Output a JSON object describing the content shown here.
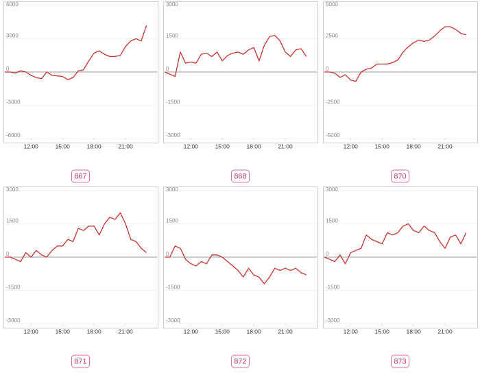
{
  "chart_data": [
    {
      "type": "line",
      "title": "867",
      "color": "#c8312c",
      "x": [
        9.5,
        10,
        10.5,
        11,
        11.5,
        12,
        12.5,
        13,
        13.5,
        14,
        14.5,
        15,
        15.5,
        16,
        16.5,
        17,
        17.5,
        18,
        18.5,
        19,
        19.5,
        20,
        20.5,
        21,
        21.5,
        22,
        22.5,
        23
      ],
      "values": [
        0,
        0,
        -100,
        100,
        0,
        -300,
        -500,
        -600,
        0,
        -300,
        -350,
        -400,
        -700,
        -500,
        100,
        200,
        1000,
        1700,
        1900,
        1600,
        1400,
        1400,
        1500,
        2300,
        2800,
        3000,
        2800,
        4200
      ],
      "xlim": [
        9.5,
        24
      ],
      "xticks": [
        {
          "value": 12,
          "label": "12:00"
        },
        {
          "value": 15,
          "label": "15:00"
        },
        {
          "value": 18,
          "label": "18:00"
        },
        {
          "value": 21,
          "label": "21:00"
        }
      ],
      "ylim": [
        -6000,
        6000
      ],
      "yticks": [
        -6000,
        -3000,
        0,
        3000,
        6000
      ],
      "grid": true
    },
    {
      "type": "line",
      "title": "868",
      "color": "#c8312c",
      "x": [
        9.5,
        10,
        10.5,
        11,
        11.5,
        12,
        12.5,
        13,
        13.5,
        14,
        14.5,
        15,
        15.5,
        16,
        16.5,
        17,
        17.5,
        18,
        18.5,
        19,
        19.5,
        20,
        20.5,
        21,
        21.5,
        22,
        22.5,
        23
      ],
      "values": [
        0,
        -100,
        -200,
        900,
        400,
        450,
        400,
        800,
        850,
        700,
        900,
        500,
        750,
        850,
        900,
        800,
        1000,
        1100,
        500,
        1200,
        1600,
        1650,
        1400,
        900,
        700,
        1000,
        1050,
        700
      ],
      "xlim": [
        9.5,
        24
      ],
      "xticks": [
        {
          "value": 12,
          "label": "12:00"
        },
        {
          "value": 15,
          "label": "15:00"
        },
        {
          "value": 18,
          "label": "18:00"
        },
        {
          "value": 21,
          "label": "21:00"
        }
      ],
      "ylim": [
        -3000,
        3000
      ],
      "yticks": [
        -3000,
        -1500,
        0,
        1500,
        3000
      ],
      "grid": true
    },
    {
      "type": "line",
      "title": "870",
      "color": "#c8312c",
      "x": [
        9.5,
        10,
        10.5,
        11,
        11.5,
        12,
        12.5,
        13,
        13.5,
        14,
        14.5,
        15,
        15.5,
        16,
        16.5,
        17,
        17.5,
        18,
        18.5,
        19,
        19.5,
        20,
        20.5,
        21,
        21.5,
        22,
        22.5,
        23
      ],
      "values": [
        0,
        0,
        -100,
        -400,
        -200,
        -600,
        -700,
        0,
        200,
        300,
        600,
        600,
        600,
        700,
        900,
        1500,
        1900,
        2200,
        2400,
        2300,
        2400,
        2700,
        3100,
        3400,
        3400,
        3200,
        2900,
        2800
      ],
      "xlim": [
        9.5,
        24
      ],
      "xticks": [
        {
          "value": 12,
          "label": "12:00"
        },
        {
          "value": 15,
          "label": "15:00"
        },
        {
          "value": 18,
          "label": "18:00"
        },
        {
          "value": 21,
          "label": "21:00"
        }
      ],
      "ylim": [
        -5000,
        5000
      ],
      "yticks": [
        -5000,
        -2500,
        0,
        2500,
        5000
      ],
      "grid": true
    },
    {
      "type": "line",
      "title": "871",
      "color": "#c8312c",
      "x": [
        9.5,
        10,
        10.5,
        11,
        11.5,
        12,
        12.5,
        13,
        13.5,
        14,
        14.5,
        15,
        15.5,
        16,
        16.5,
        17,
        17.5,
        18,
        18.5,
        19,
        19.5,
        20,
        20.5,
        21,
        21.5,
        22,
        22.5,
        23
      ],
      "values": [
        0,
        0,
        -100,
        -200,
        200,
        0,
        300,
        100,
        0,
        300,
        500,
        500,
        800,
        700,
        1300,
        1200,
        1400,
        1400,
        1000,
        1500,
        1800,
        1700,
        2000,
        1500,
        800,
        700,
        400,
        200
      ],
      "xlim": [
        9.5,
        24
      ],
      "xticks": [
        {
          "value": 12,
          "label": "12:00"
        },
        {
          "value": 15,
          "label": "15:00"
        },
        {
          "value": 18,
          "label": "18:00"
        },
        {
          "value": 21,
          "label": "21:00"
        }
      ],
      "ylim": [
        -3000,
        3000
      ],
      "yticks": [
        -3000,
        -1500,
        0,
        1500,
        3000
      ],
      "grid": true
    },
    {
      "type": "line",
      "title": "872",
      "color": "#c8312c",
      "x": [
        9.5,
        10,
        10.5,
        11,
        11.5,
        12,
        12.5,
        13,
        13.5,
        14,
        14.5,
        15,
        15.5,
        16,
        16.5,
        17,
        17.5,
        18,
        18.5,
        19,
        19.5,
        20,
        20.5,
        21,
        21.5,
        22,
        22.5,
        23
      ],
      "values": [
        0,
        0,
        500,
        400,
        -100,
        -300,
        -400,
        -200,
        -300,
        100,
        100,
        0,
        -200,
        -400,
        -600,
        -900,
        -500,
        -800,
        -900,
        -1200,
        -900,
        -500,
        -600,
        -500,
        -600,
        -500,
        -700,
        -800
      ],
      "xlim": [
        9.5,
        24
      ],
      "xticks": [
        {
          "value": 12,
          "label": "12:00"
        },
        {
          "value": 15,
          "label": "15:00"
        },
        {
          "value": 18,
          "label": "18:00"
        },
        {
          "value": 21,
          "label": "21:00"
        }
      ],
      "ylim": [
        -3000,
        3000
      ],
      "yticks": [
        -3000,
        -1500,
        0,
        1500,
        3000
      ],
      "grid": true
    },
    {
      "type": "line",
      "title": "873",
      "color": "#c8312c",
      "x": [
        9.5,
        10,
        10.5,
        11,
        11.5,
        12,
        12.5,
        13,
        13.5,
        14,
        14.5,
        15,
        15.5,
        16,
        16.5,
        17,
        17.5,
        18,
        18.5,
        19,
        19.5,
        20,
        20.5,
        21,
        21.5,
        22,
        22.5,
        23
      ],
      "values": [
        0,
        -100,
        -200,
        100,
        -300,
        200,
        300,
        400,
        1000,
        800,
        700,
        600,
        1100,
        1000,
        1100,
        1400,
        1500,
        1200,
        1100,
        1400,
        1200,
        1100,
        700,
        400,
        900,
        1000,
        600,
        1100
      ],
      "xlim": [
        9.5,
        24
      ],
      "xticks": [
        {
          "value": 12,
          "label": "12:00"
        },
        {
          "value": 15,
          "label": "15:00"
        },
        {
          "value": 18,
          "label": "18:00"
        },
        {
          "value": 21,
          "label": "21:00"
        }
      ],
      "ylim": [
        -3000,
        3000
      ],
      "yticks": [
        -3000,
        -1500,
        0,
        1500,
        3000
      ],
      "grid": true
    }
  ]
}
